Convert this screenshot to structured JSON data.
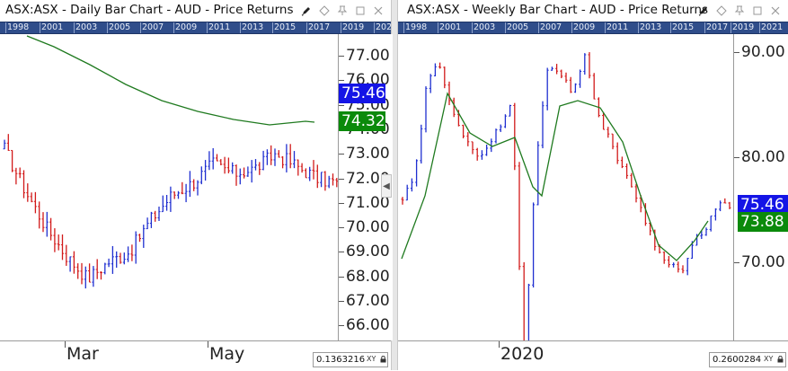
{
  "colors": {
    "up": "#1f2fd0",
    "down": "#d21a1a",
    "ma": "#1f7a1f",
    "yearbar": "#2f4d8a",
    "blue_tag": "#1414e6",
    "green_tag": "#0b8a0b"
  },
  "left": {
    "title": "ASX:ASX - Daily Bar Chart - AUD - Price Returns",
    "years": [
      "1998",
      "2001",
      "2003",
      "2005",
      "2007",
      "2009",
      "2011",
      "2013",
      "2015",
      "2017",
      "2019",
      "202"
    ],
    "y_ticks": [
      "77.00",
      "76.00",
      "75.00",
      "74.00",
      "73.00",
      "72.00",
      "71.00",
      "70.00",
      "69.00",
      "68.00",
      "67.00",
      "66.00"
    ],
    "price_last": "75.46",
    "ma_last": "74.32",
    "x_labels": [
      "Mar",
      "May"
    ],
    "scale_value": "0.1363216",
    "scale_xy": "XY",
    "icons": [
      "pencil-icon",
      "diamond-icon",
      "pin-icon",
      "maximize-icon",
      "close-icon"
    ]
  },
  "right": {
    "title": "ASX:ASX - Weekly Bar Chart - AUD - Price Returns",
    "years": [
      "1998",
      "2001",
      "2003",
      "2005",
      "2007",
      "2009",
      "2011",
      "2013",
      "2015",
      "2017",
      "2019",
      "2021"
    ],
    "y_ticks": [
      "90.00",
      "80.00",
      "70.00"
    ],
    "price_last": "75.46",
    "ma_last": "73.88",
    "x_labels": [
      "2020"
    ],
    "scale_value": "0.2600284",
    "scale_xy": "XY",
    "icons": [
      "pencil-icon",
      "diamond-icon",
      "pin-icon",
      "maximize-icon",
      "close-icon"
    ]
  }
}
